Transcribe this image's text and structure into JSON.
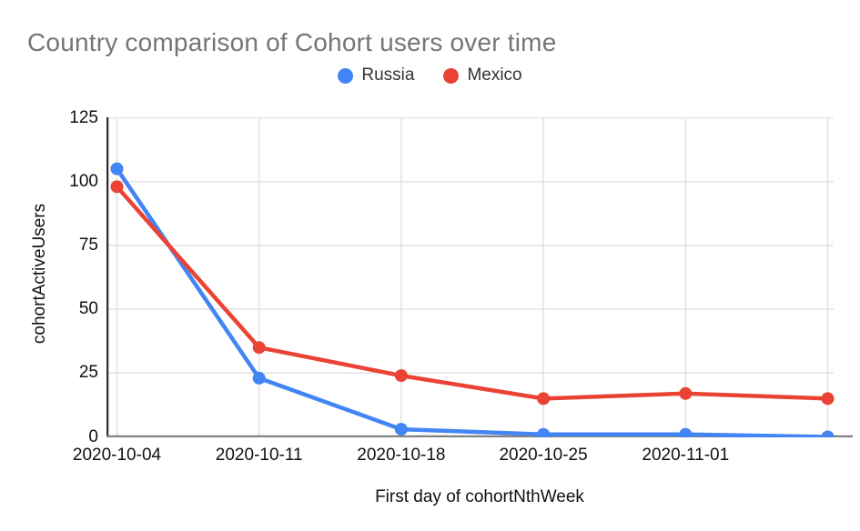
{
  "chart_data": {
    "type": "line",
    "title": "Country comparison of Cohort users over time",
    "xlabel": "First day of cohortNthWeek",
    "ylabel": "cohortActiveUsers",
    "x_tick_labels": [
      "2020-10-04",
      "2020-10-11",
      "2020-10-18",
      "2020-10-25",
      "2020-11-01",
      ""
    ],
    "num_points": 6,
    "series": [
      {
        "name": "Russia",
        "color": "#4285F4",
        "values": [
          105,
          23,
          3,
          1,
          1,
          0
        ]
      },
      {
        "name": "Mexico",
        "color": "#EA4335",
        "values": [
          98,
          35,
          24,
          15,
          17,
          15
        ]
      }
    ],
    "y_ticks": [
      0,
      25,
      50,
      75,
      100,
      125
    ],
    "ylim": [
      0,
      125
    ],
    "grid": true,
    "legend_position": "top",
    "colors": {
      "title_text": "#757575",
      "tick_text": "#111111",
      "gridline": "#e2e2e2",
      "y_axis_line": "#2e2e2e",
      "x_axis_line": "#808080",
      "background": "#ffffff"
    }
  }
}
